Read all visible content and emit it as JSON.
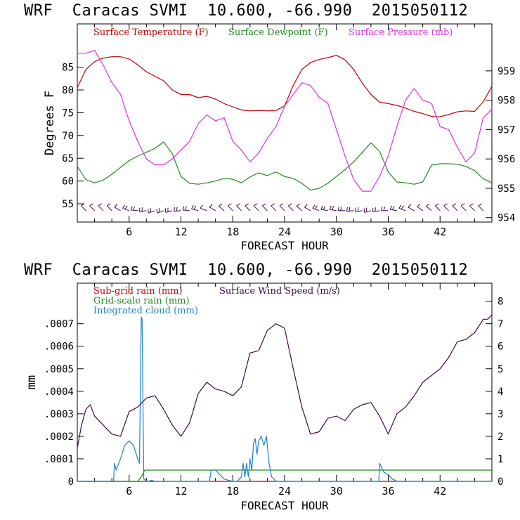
{
  "colors": {
    "temp": "#c00000",
    "dew": "#1f8a1f",
    "pres": "#e030e0",
    "subgrid": "#c00000",
    "gridscale": "#1f8a1f",
    "cloud": "#2080d0",
    "wind": "#3a0a4a",
    "barb": "#3a0a4a",
    "frame": "#000000"
  },
  "chart_data": [
    {
      "type": "line",
      "title": "WRF  Caracas SVMI  10.600, -66.990  2015050112",
      "xlabel": "FORECAST HOUR",
      "ylabel": "Degrees F",
      "xlim": [
        0,
        48
      ],
      "ylim": [
        51,
        94.5
      ],
      "y2lim": [
        953.85,
        960.6
      ],
      "xticks": [
        6,
        12,
        18,
        24,
        30,
        36,
        42
      ],
      "xtick_labels": [
        "6",
        "12",
        "18",
        "24",
        "30",
        "36",
        "42"
      ],
      "yticks": [
        55,
        60,
        65,
        70,
        75,
        80,
        85
      ],
      "ytick_labels": [
        "55",
        "60",
        "65",
        "70",
        "75",
        "80",
        "85"
      ],
      "y2ticks": [
        954,
        955,
        956,
        957,
        958,
        959
      ],
      "y2tick_labels": [
        "954",
        "955",
        "956",
        "957",
        "958",
        "959"
      ],
      "legend": [
        "Surface Temperature (F)",
        "Surface Dewpoint (F)",
        "Surface Pressure (mb)"
      ],
      "legend_placement": "top",
      "series": [
        {
          "name": "Surface Temperature (F)",
          "axis": "left",
          "x": [
            0,
            1,
            2,
            3,
            4,
            5,
            6,
            7,
            8,
            9,
            10,
            11,
            12,
            13,
            14,
            15,
            16,
            17,
            18,
            19,
            20,
            21,
            22,
            23,
            24,
            25,
            26,
            27,
            28,
            29,
            30,
            31,
            32,
            33,
            34,
            35,
            36,
            37,
            38,
            39,
            40,
            41,
            42,
            43,
            44,
            45,
            46,
            47,
            48
          ],
          "values": [
            80.5,
            84.5,
            86.2,
            87,
            87.3,
            87.3,
            86.8,
            85.5,
            84,
            83,
            82,
            80,
            79,
            79,
            78.3,
            78.6,
            78,
            77,
            76.3,
            75.6,
            75.4,
            75.5,
            75.4,
            75.5,
            76.5,
            81,
            84.5,
            86,
            86.7,
            87.1,
            87.6,
            86.6,
            84.5,
            81.5,
            79,
            77.3,
            77,
            76.6,
            76,
            75.3,
            74.8,
            74.2,
            74.1,
            74.6,
            75.2,
            75.4,
            75.3,
            77.4,
            80.8
          ]
        },
        {
          "name": "Surface Dewpoint (F)",
          "axis": "left",
          "x": [
            0,
            1,
            2,
            3,
            4,
            5,
            6,
            7,
            8,
            9,
            10,
            11,
            12,
            13,
            14,
            15,
            16,
            17,
            18,
            19,
            20,
            21,
            22,
            23,
            24,
            25,
            26,
            27,
            28,
            29,
            30,
            31,
            32,
            33,
            34,
            35,
            36,
            37,
            38,
            39,
            40,
            41,
            42,
            43,
            44,
            45,
            46,
            47,
            48
          ],
          "values": [
            63.2,
            60.3,
            59.6,
            60.2,
            61.5,
            63,
            64.5,
            65.5,
            66.3,
            67.2,
            68.6,
            66,
            61,
            59.5,
            59.3,
            59.6,
            60,
            60.6,
            60.4,
            59.6,
            60.9,
            61.8,
            61.2,
            62,
            61,
            60.6,
            59.5,
            58,
            58.4,
            59.5,
            61,
            62.5,
            64.2,
            66.3,
            68.4,
            66.5,
            62,
            59.8,
            59.6,
            59.3,
            59.8,
            63.5,
            63.8,
            63.8,
            63.7,
            63.2,
            62.3,
            60.5,
            59.6
          ]
        },
        {
          "name": "Surface Pressure (mb)",
          "axis": "right",
          "x": [
            0,
            1,
            2,
            3,
            4,
            5,
            6,
            7,
            8,
            9,
            10,
            11,
            12,
            13,
            14,
            15,
            16,
            17,
            18,
            19,
            20,
            21,
            22,
            23,
            24,
            25,
            26,
            27,
            28,
            29,
            30,
            31,
            32,
            33,
            34,
            35,
            36,
            37,
            38,
            39,
            40,
            41,
            42,
            43,
            44,
            45,
            46,
            47,
            48
          ],
          "values": [
            959.6,
            959.6,
            959.7,
            959.2,
            958.6,
            958.2,
            957.3,
            956.6,
            956,
            955.8,
            955.8,
            956,
            956.3,
            956.6,
            957.2,
            957.5,
            957.3,
            957.4,
            956.6,
            956.3,
            955.9,
            956.2,
            956.7,
            957.1,
            957.8,
            958.2,
            958.6,
            958.5,
            958.1,
            957.9,
            957,
            956.1,
            955.3,
            954.9,
            954.9,
            955.4,
            956.1,
            957.1,
            958,
            958.4,
            958,
            957.9,
            957.1,
            957,
            956.4,
            955.9,
            956.2,
            957.4,
            957.7
          ]
        },
        {
          "name": "Wind barbs",
          "axis": "left",
          "level": 53.5,
          "x": [
            1,
            2,
            3,
            4,
            5,
            6,
            7,
            8,
            9,
            10,
            11,
            12,
            13,
            14,
            15,
            16,
            17,
            18,
            19,
            20,
            21,
            22,
            23,
            24,
            25,
            26,
            27,
            28,
            29,
            30,
            31,
            32,
            33,
            34,
            35,
            36,
            37,
            38,
            39,
            40,
            41,
            42,
            43,
            44,
            45,
            46,
            47
          ],
          "direction": [
            315,
            315,
            315,
            315,
            300,
            290,
            275,
            260,
            250,
            250,
            255,
            265,
            275,
            285,
            290,
            300,
            310,
            315,
            315,
            315,
            315,
            315,
            315,
            315,
            315,
            310,
            300,
            290,
            280,
            280,
            270,
            265,
            260,
            255,
            260,
            270,
            280,
            290,
            300,
            305,
            310,
            315,
            315,
            315,
            315,
            315,
            315
          ],
          "speed": [
            5,
            5,
            5,
            5,
            5,
            10,
            10,
            10,
            10,
            10,
            10,
            10,
            10,
            10,
            5,
            5,
            5,
            5,
            5,
            5,
            5,
            5,
            5,
            5,
            5,
            5,
            5,
            10,
            10,
            10,
            10,
            10,
            10,
            10,
            10,
            10,
            10,
            10,
            5,
            5,
            5,
            5,
            5,
            5,
            5,
            5,
            5
          ]
        }
      ]
    },
    {
      "type": "line",
      "title": "WRF  Caracas SVMI  10.600, -66.990  2015050112",
      "xlabel": "FORECAST HOUR",
      "ylabel": "mm",
      "xlim": [
        0,
        48
      ],
      "ylim": [
        0,
        0.00088
      ],
      "y2lim": [
        0,
        8.8
      ],
      "xticks": [
        6,
        12,
        18,
        24,
        30,
        36,
        42
      ],
      "xtick_labels": [
        "6",
        "12",
        "18",
        "24",
        "30",
        "36",
        "42"
      ],
      "yticks": [
        0,
        0.0001,
        0.0002,
        0.0003,
        0.0004,
        0.0005,
        0.0006,
        0.0007
      ],
      "ytick_labels": [
        "0",
        ".0001",
        ".0002",
        ".0003",
        ".0004",
        ".0005",
        ".0006",
        ".0007"
      ],
      "y2ticks": [
        0,
        1,
        2,
        3,
        4,
        5,
        6,
        7,
        8
      ],
      "y2tick_labels": [
        "0",
        "1",
        "2",
        "3",
        "4",
        "5",
        "6",
        "7",
        "8"
      ],
      "legend": [
        "Sub-grid rain (mm)",
        "Grid-scale rain (mm)",
        "Integrated cloud (mm)",
        "Surface Wind Speed (m/s)"
      ],
      "legend_placement": "top-left",
      "series": [
        {
          "name": "Sub-grid rain (mm)",
          "axis": "left",
          "x": [
            0,
            48
          ],
          "values": [
            0,
            0
          ]
        },
        {
          "name": "Grid-scale rain (mm)",
          "axis": "left",
          "x": [
            0,
            7,
            7.4,
            7.8,
            48
          ],
          "values": [
            0,
            0,
            2e-05,
            5e-05,
            5e-05
          ]
        },
        {
          "name": "Integrated cloud (mm)",
          "axis": "left",
          "x": [
            0,
            4.2,
            4.3,
            4.5,
            4.8,
            5,
            5.5,
            6,
            6.5,
            7,
            7.2,
            7.4,
            7.5,
            7.7,
            7.9,
            8.2,
            8.6,
            9,
            9.5,
            15.3,
            15.5,
            16,
            16.5,
            17,
            17.5,
            18,
            18.5,
            19,
            19.2,
            19.4,
            19.6,
            19.8,
            20,
            20.2,
            20.4,
            20.6,
            20.8,
            21,
            21.3,
            21.6,
            21.9,
            22.2,
            22.5,
            23,
            23.5,
            34.9,
            35,
            35.5,
            36,
            36.5,
            37,
            48
          ],
          "values": [
            0,
            0,
            8e-05,
            5e-05,
            8e-05,
            0.0001,
            0.00016,
            0.00018,
            0.00016,
            0.0001,
            8e-05,
            0.00073,
            0.00072,
            1e-05,
            5e-06,
            0,
            5e-06,
            0,
            0,
            0,
            5e-05,
            5e-05,
            3e-05,
            1e-05,
            5e-06,
            0,
            0,
            2e-05,
            8e-05,
            2e-05,
            8e-05,
            2e-05,
            0.0001,
            5e-05,
            0.00017,
            0.00019,
            0.00012,
            0.00018,
            0.0002,
            0.00016,
            0.0002,
            8e-05,
            2e-05,
            0,
            0,
            0,
            8e-05,
            4e-05,
            3e-05,
            1e-05,
            0,
            0
          ]
        },
        {
          "name": "Surface Wind Speed (m/s)",
          "axis": "right",
          "x": [
            0,
            0.5,
            1,
            1.5,
            2,
            3,
            4,
            5,
            6,
            7,
            8,
            9,
            10,
            11,
            12,
            13,
            14,
            15,
            16,
            17,
            18,
            19,
            20,
            21,
            22,
            23,
            24,
            25,
            26,
            27,
            28,
            29,
            30,
            31,
            32,
            33,
            34,
            35,
            36,
            37,
            38,
            39,
            40,
            41,
            42,
            43,
            44,
            45,
            46,
            47,
            47.5,
            48
          ],
          "values": [
            1.5,
            2.5,
            3.2,
            3.4,
            2.9,
            2.5,
            2.1,
            2,
            3.1,
            3.3,
            3.7,
            3.8,
            3.2,
            2.5,
            2,
            2.6,
            3.9,
            4.4,
            4.1,
            4,
            3.8,
            4.2,
            5.7,
            5.8,
            6.7,
            7,
            6.8,
            5,
            3.3,
            2.1,
            2.2,
            2.8,
            2.9,
            2.7,
            3.2,
            3.4,
            3.5,
            2.9,
            2.1,
            3,
            3.3,
            3.8,
            4.4,
            4.7,
            5,
            5.5,
            6.2,
            6.3,
            6.6,
            7.2,
            7.2,
            7.4
          ]
        }
      ]
    }
  ]
}
